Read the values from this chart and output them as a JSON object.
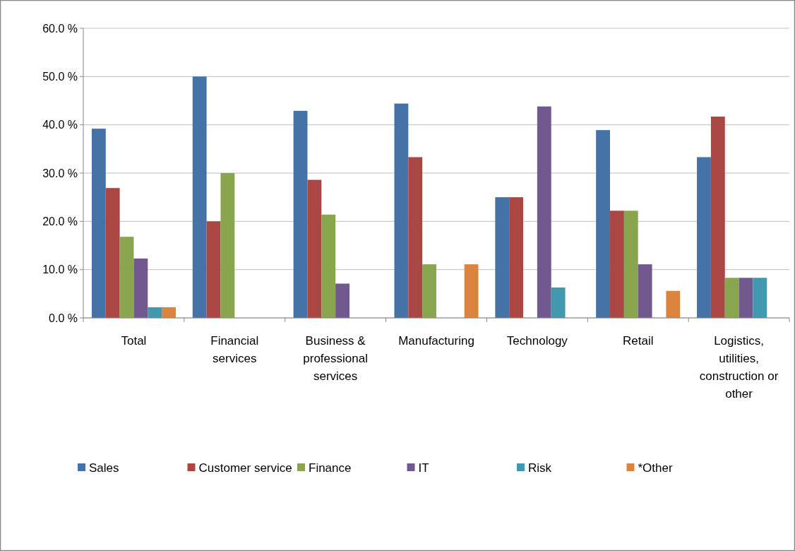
{
  "chart_data": {
    "type": "bar",
    "categories": [
      "Total",
      "Financial services",
      "Business & professional services",
      "Manufacturing",
      "Technology",
      "Retail",
      "Logistics, utilities, construction or other"
    ],
    "series": [
      {
        "name": "Sales",
        "color": "#4572a7",
        "values": [
          39.2,
          50,
          42.9,
          44.4,
          25,
          38.9,
          33.3
        ]
      },
      {
        "name": "Customer service",
        "color": "#aa4643",
        "values": [
          26.9,
          20,
          28.6,
          33.3,
          25,
          22.2,
          41.7
        ]
      },
      {
        "name": "Finance",
        "color": "#89a54e",
        "values": [
          16.8,
          30,
          21.4,
          11.1,
          null,
          22.2,
          8.3
        ]
      },
      {
        "name": "IT",
        "color": "#71588f",
        "values": [
          12.3,
          null,
          7.1,
          null,
          43.8,
          11.1,
          8.3
        ]
      },
      {
        "name": "Risk",
        "color": "#4198af",
        "values": [
          2.2,
          null,
          null,
          null,
          6.3,
          null,
          8.3
        ]
      },
      {
        "name": "*Other",
        "color": "#db843d",
        "values": [
          2.2,
          null,
          null,
          11.1,
          null,
          5.6,
          null
        ]
      }
    ],
    "ylim": [
      0,
      60
    ],
    "yticks": [
      {
        "value": 0,
        "label": "0.0 %"
      },
      {
        "value": 10,
        "label": "10.0 %"
      },
      {
        "value": 20,
        "label": "20.0 %"
      },
      {
        "value": 30,
        "label": "30.0 %"
      },
      {
        "value": 40,
        "label": "40.0 %"
      },
      {
        "value": 50,
        "label": "50.0 %"
      },
      {
        "value": 60,
        "label": "60.0 %"
      }
    ],
    "grid": "y",
    "legend": "bottom"
  }
}
